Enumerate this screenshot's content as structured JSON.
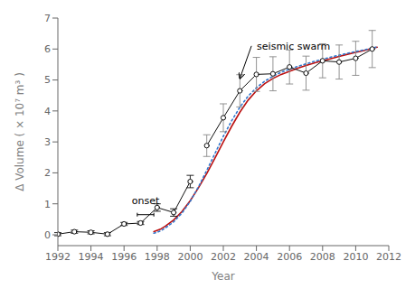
{
  "chart_data": {
    "type": "line",
    "xlabel": "Year",
    "ylabel": "Δ Volume ( × 10⁷ m³ )",
    "xlim": [
      1992,
      2012
    ],
    "ylim": [
      -0.35,
      7
    ],
    "xticks": [
      1992,
      1994,
      1996,
      1998,
      2000,
      2002,
      2004,
      2006,
      2008,
      2010,
      2012
    ],
    "yticks": [
      0,
      1,
      2,
      3,
      4,
      5,
      6,
      7
    ],
    "grid": false,
    "series": [
      {
        "type": "line",
        "color": "#bb1111",
        "line_style": "solid",
        "x": [
          1997.8,
          1998.2,
          1998.5,
          1999.0,
          1999.5,
          2000.0,
          2000.5,
          2001.0,
          2001.5,
          2002.0,
          2002.5,
          2003.0,
          2003.5,
          2004.0,
          2004.5,
          2005.0,
          2005.5,
          2006.0,
          2006.5,
          2007.0,
          2007.5,
          2008.0,
          2008.5,
          2009.0,
          2009.5,
          2010.0,
          2010.5,
          2011.0,
          2011.3
        ],
        "values": [
          0.1,
          0.18,
          0.28,
          0.48,
          0.75,
          1.1,
          1.52,
          1.98,
          2.48,
          3.0,
          3.5,
          3.96,
          4.35,
          4.65,
          4.88,
          5.05,
          5.18,
          5.28,
          5.38,
          5.47,
          5.55,
          5.62,
          5.69,
          5.76,
          5.83,
          5.89,
          5.95,
          6.02,
          6.06
        ]
      },
      {
        "type": "line",
        "color": "#3377cc",
        "line_style": "dotted",
        "x": [
          1997.8,
          1998.2,
          1998.5,
          1999.0,
          1999.5,
          2000.0,
          2000.5,
          2001.0,
          2001.5,
          2002.0,
          2002.5,
          2003.0,
          2003.5,
          2004.0,
          2004.5,
          2005.0,
          2005.5,
          2006.0,
          2006.5,
          2007.0,
          2007.5,
          2008.0,
          2008.5,
          2009.0,
          2009.5,
          2010.0,
          2010.5,
          2011.0,
          2011.3
        ],
        "values": [
          0.05,
          0.12,
          0.22,
          0.42,
          0.7,
          1.08,
          1.55,
          2.08,
          2.63,
          3.18,
          3.68,
          4.12,
          4.48,
          4.75,
          4.96,
          5.12,
          5.25,
          5.35,
          5.44,
          5.52,
          5.6,
          5.67,
          5.74,
          5.8,
          5.86,
          5.92,
          5.97,
          6.03,
          6.07
        ]
      },
      {
        "type": "errorbar",
        "color": "#111111",
        "marker": "o",
        "line_style": "solid",
        "x": [
          1992,
          1993,
          1994,
          1995,
          1996,
          1997,
          1998,
          1999,
          2000
        ],
        "values": [
          0.02,
          0.1,
          0.08,
          0.02,
          0.35,
          0.38,
          0.88,
          0.72,
          1.72
        ],
        "errors": {
          "values": [
            0.05,
            0.05,
            0.05,
            0.05,
            0.05,
            0.05,
            0.12,
            0.12,
            0.2
          ],
          "color": "#111111"
        }
      },
      {
        "type": "errorbar",
        "color": "#111111",
        "marker": "o",
        "line_style": "solid",
        "x": [
          2001,
          2002,
          2003,
          2004,
          2005,
          2006,
          2007,
          2008,
          2009,
          2010,
          2011
        ],
        "values": [
          2.88,
          3.78,
          4.65,
          5.18,
          5.2,
          5.42,
          5.22,
          5.62,
          5.58,
          5.7,
          6.0
        ],
        "errors": {
          "values": [
            0.35,
            0.45,
            0.52,
            0.55,
            0.55,
            0.55,
            0.55,
            0.55,
            0.55,
            0.55,
            0.6
          ],
          "color": "#888888"
        }
      }
    ],
    "annotations": [
      {
        "text": "onset",
        "x": 1997.3,
        "y": 0.82,
        "bracket": {
          "x": [
            1996.8,
            1997.8
          ],
          "y": 0.65,
          "tick_y": [
            0.59,
            0.71
          ]
        }
      },
      {
        "text": "seismic swarm",
        "x": 2003.7,
        "y": 6.1,
        "arrow_to": [
          2003.0,
          5.05
        ]
      }
    ]
  }
}
